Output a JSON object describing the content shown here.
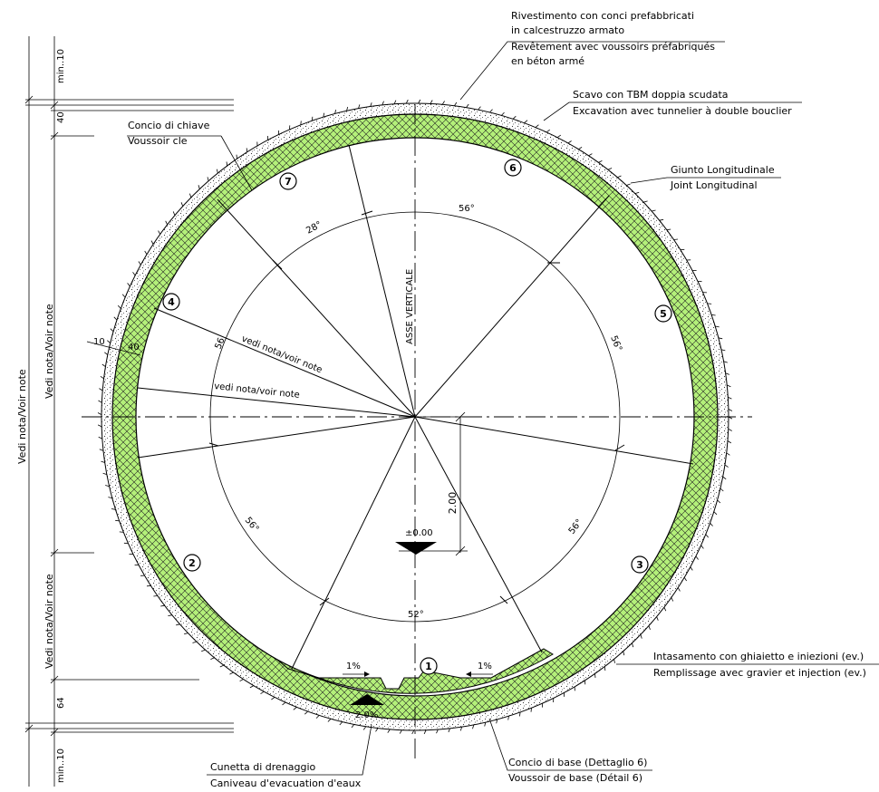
{
  "labels": {
    "lining_it_1": "Rivestimento con conci prefabbricati",
    "lining_it_2": "in calcestruzzo armato",
    "lining_fr_1": "Revêtement avec voussoirs préfabriqués",
    "lining_fr_2": "en béton armé",
    "tbm_it": "Scavo con TBM doppia scudata",
    "tbm_fr": "Excavation avec tunnelier à double bouclier",
    "key_it": "Concio di chiave",
    "key_fr": "Voussoir cle",
    "joint_it": "Giunto Longitudinale",
    "joint_fr": "Joint Longitudinal",
    "backfill_it": "Intasamento con ghiaietto e iniezioni (ev.)",
    "backfill_fr": "Remplissage avec gravier et injection (ev.)",
    "drain_it": "Cunetta di drenaggio",
    "drain_fr": "Caniveau d'evacuation d'eaux",
    "base_it": "Concio di base (Dettaglio 6)",
    "base_fr": "Voussoir de base (Détail 6)",
    "axis_vertical": "ASSE VERTICALE",
    "note_1": "vedi nota/voir note",
    "note_2": "vedi nota/voir note",
    "elevation": "±0.00"
  },
  "segments": [
    "1",
    "2",
    "3",
    "4",
    "5",
    "6",
    "7"
  ],
  "angles": {
    "a28": "28°",
    "a56_top": "56°",
    "a56_right": "56°",
    "a56_left": "56",
    "a56_lower_left": "56°",
    "a56_lower_right": "56°",
    "a52": "52°"
  },
  "dimensions": {
    "radius": "2.00",
    "slope_left": "1%",
    "slope_right": "1%",
    "slope_center": "2.0%",
    "d10": "10",
    "d40": "40",
    "left_min10_top": "min..10",
    "left_40": "40",
    "left_note_main": "Vedi nota/Voir note",
    "left_note_mid": "Vedi nota/Voir note",
    "left_note_low": "Vedi nota/Voir note",
    "left_64": "64",
    "left_min10_bot": "min..10"
  },
  "colors": {
    "lining_fill": "#b4f07a",
    "lines": "#000000"
  }
}
